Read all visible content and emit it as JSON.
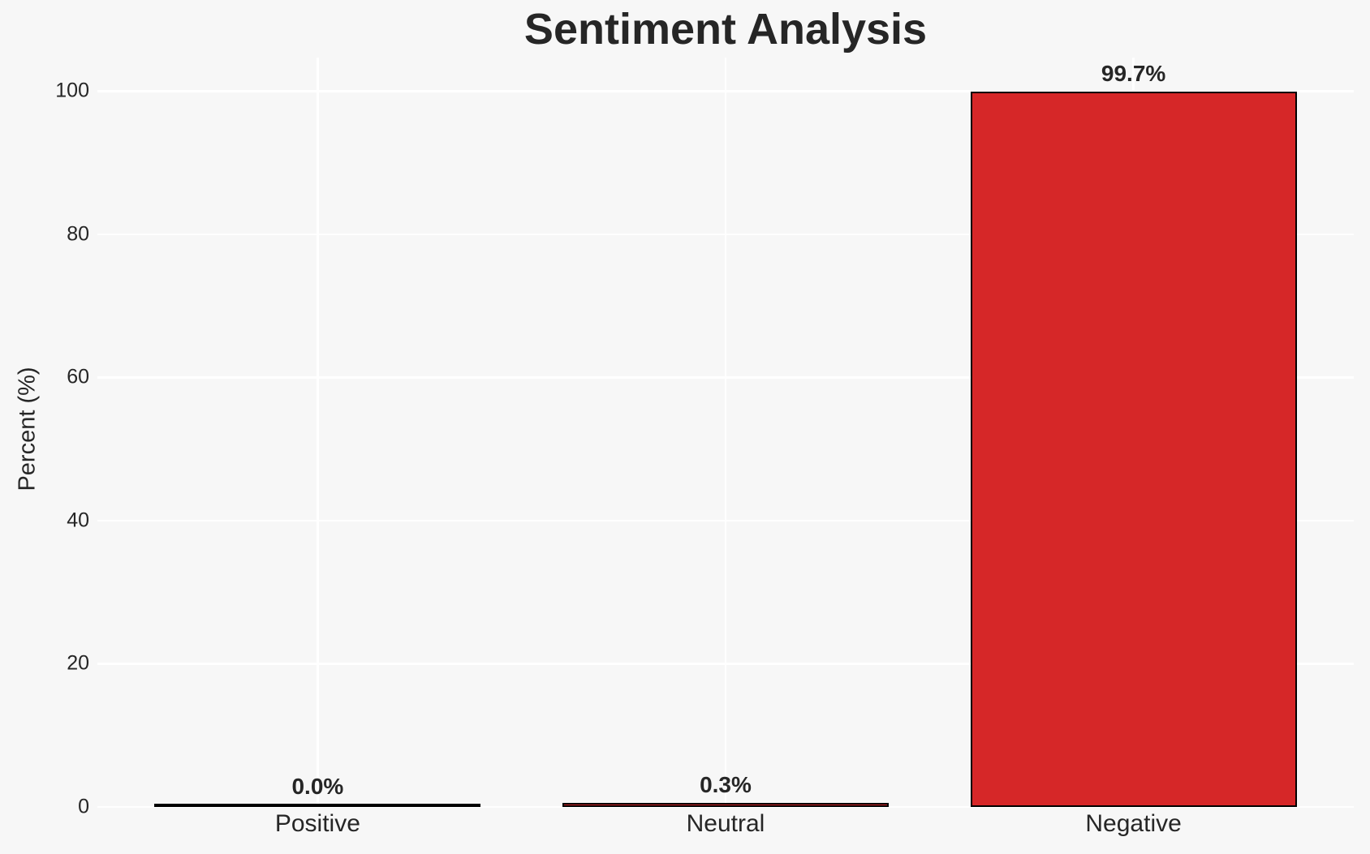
{
  "chart_data": {
    "type": "bar",
    "title": "Sentiment Analysis",
    "xlabel": "",
    "ylabel": "Percent (%)",
    "categories": [
      "Positive",
      "Neutral",
      "Negative"
    ],
    "values": [
      0.0,
      0.3,
      99.7
    ],
    "value_labels": [
      "0.0%",
      "0.3%",
      "99.7%"
    ],
    "yticks": [
      0,
      20,
      40,
      60,
      80,
      100
    ],
    "ylim": [
      0,
      104.7
    ],
    "xlim": [
      -0.54,
      2.54
    ],
    "bar_width_fraction": 0.8,
    "grid": true,
    "legend": false,
    "colors": {
      "background": "#f7f7f7",
      "gridline": "#ffffff",
      "bar_fill": "#d62728",
      "bar_edge": "#000000",
      "text": "#262626"
    }
  }
}
